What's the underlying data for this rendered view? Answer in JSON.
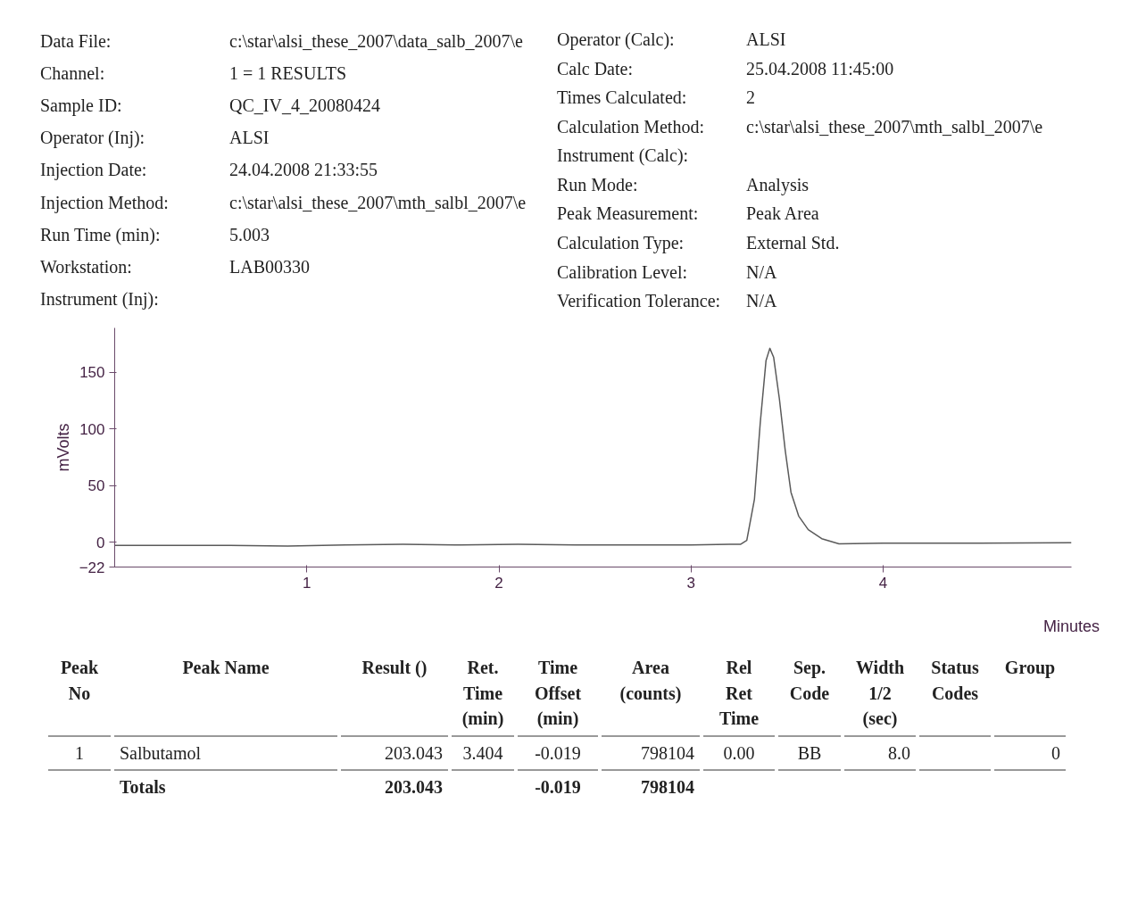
{
  "chart_data": {
    "type": "line",
    "xlabel": "Minutes",
    "ylabel": "mVolts",
    "x": [
      0,
      0.3,
      0.6,
      0.9,
      1.2,
      1.5,
      1.8,
      2.1,
      2.4,
      2.7,
      3.0,
      3.2,
      3.257,
      3.29,
      3.33,
      3.36,
      3.39,
      3.41,
      3.43,
      3.46,
      3.49,
      3.52,
      3.56,
      3.61,
      3.68,
      3.77,
      4.0,
      4.5,
      4.98
    ],
    "series": [
      {
        "color": "#5a5a5a",
        "values": [
          -3,
          -3,
          -3,
          -3.5,
          -2.5,
          -2,
          -2.5,
          -2,
          -2.5,
          -2.5,
          -2.5,
          -2,
          -2,
          1.5,
          38,
          105,
          160,
          171,
          163,
          126,
          81,
          44,
          23,
          11,
          3,
          -1.5,
          -1,
          -1,
          -0.5
        ]
      }
    ],
    "xlim": [
      0,
      4.98
    ],
    "ylim": [
      -22,
      189
    ],
    "xticks": [
      1,
      2,
      3,
      4
    ],
    "yticks": [
      -22,
      0,
      50,
      100,
      150
    ],
    "grid": false,
    "marker": "none",
    "line_style": "solid",
    "annotations": [
      "Data File:\tc:\\star\\alsi_these_2007\\data_salb_2007\\e",
      "Channel:\t1 = 1  RESULTS",
      "Sample ID:\tQC_IV_4_20080424",
      "Operator (Inj):\tALSI",
      "Injection Date:\t24.04.2008 21:33:55",
      "Injection Method:\tc:\\star\\alsi_these_2007\\mth_salbl_2007\\e",
      "Run Time (min):\t5.003",
      "Workstation:\tLAB00330",
      "Instrument (Inj):",
      "Operator (Calc):\tALSI",
      "Calc Date:\t25.04.2008 11:45:00",
      "Times Calculated:\t2",
      "Calculation Method:\tc:\\star\\alsi_these_2007\\mth_salbl_2007\\e",
      "Instrument (Calc):",
      "Run Mode:\tAnalysis",
      "Peak Measurement:\tPeak Area",
      "Calculation Type:\tExternal Std.",
      "Calibration Level:\tN/A",
      "Verification Tolerance:\tN/A",
      "Peak\nNo\tPeak Name\tResult ()\tRet.\nTime\n(min)\tTime\nOffset\n(min)\tArea\n(counts)\tRel\nRet\nTime\tSep.\nCode\tWidth\n1/2\n(sec)\tStatus\nCodes\tGroup",
      "1\tSalbutamol\t203.043\t3.404\t-0.019\t798104\t0.00\tBB\t8.0\t\t0",
      "\tTotals\t203.043\t\t-0.019\t798104\t\t\t\t\t"
    ]
  }
}
